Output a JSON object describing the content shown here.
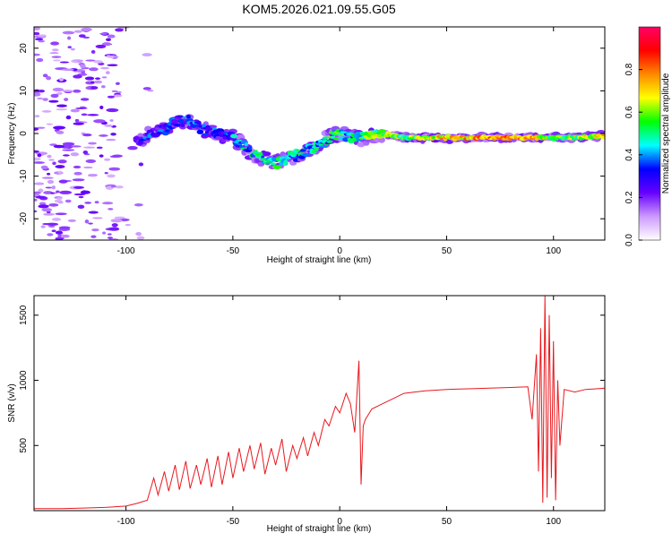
{
  "title": "KOM5.2026.021.09.55.G05",
  "chart_data": [
    {
      "type": "heatmap",
      "xlabel": "Height of straight line (km)",
      "ylabel": "Frequency (Hz)",
      "xlim": [
        -143,
        124
      ],
      "ylim": [
        -25,
        25
      ],
      "xticks": [
        -100,
        -50,
        0,
        50,
        100
      ],
      "yticks": [
        -20,
        -10,
        0,
        10,
        20
      ],
      "colorbar": {
        "label": "Normalized spectral amplitude",
        "range": [
          0,
          1
        ],
        "ticks": [
          "0.0",
          "0.2",
          "0.4",
          "0.6",
          "0.8"
        ],
        "tick_values": [
          0,
          0.2,
          0.4,
          0.6,
          0.8
        ],
        "colors": [
          "#ffffff",
          "#cc99ff",
          "#6600ff",
          "#0000ff",
          "#00ffff",
          "#00ff00",
          "#ffff00",
          "#ff8800",
          "#ff0000",
          "#ff0066"
        ]
      },
      "ridge": {
        "x": [
          -95,
          -88,
          -82,
          -76,
          -70,
          -64,
          -58,
          -50,
          -45,
          -40,
          -35,
          -30,
          -25,
          -20,
          -15,
          -10,
          -5,
          0,
          5,
          10,
          20,
          30,
          50,
          70,
          90,
          100,
          110,
          124
        ],
        "y": [
          -2,
          0,
          1,
          3,
          3,
          1,
          0,
          -1,
          -3,
          -5,
          -6,
          -7,
          -6,
          -5,
          -4,
          -3,
          -1,
          0,
          -1,
          -1,
          0,
          -1,
          -1,
          -1,
          -1,
          -1,
          -1,
          -0.5
        ],
        "amplitude": [
          0.25,
          0.3,
          0.3,
          0.3,
          0.3,
          0.3,
          0.3,
          0.35,
          0.4,
          0.45,
          0.45,
          0.5,
          0.45,
          0.45,
          0.45,
          0.4,
          0.45,
          0.5,
          0.45,
          0.5,
          0.6,
          0.55,
          0.7,
          0.75,
          0.75,
          0.55,
          0.6,
          0.65
        ]
      }
    },
    {
      "type": "line",
      "xlabel": "Height of straight line (km)",
      "ylabel": "SNR (v/v)",
      "xlim": [
        -143,
        124
      ],
      "ylim": [
        0,
        1650
      ],
      "xticks": [
        -100,
        -50,
        0,
        50,
        100
      ],
      "yticks": [
        500,
        1000,
        1500
      ],
      "color": "#e8181e",
      "series": [
        {
          "x": [
            -143,
            -130,
            -120,
            -110,
            -100,
            -95,
            -90,
            -87,
            -85,
            -82,
            -80,
            -77,
            -75,
            -72,
            -70,
            -67,
            -65,
            -62,
            -60,
            -57,
            -55,
            -52,
            -50,
            -47,
            -45,
            -42,
            -40,
            -37,
            -35,
            -32,
            -30,
            -27,
            -25,
            -22,
            -20,
            -17,
            -15,
            -12,
            -10,
            -7,
            -5,
            -2,
            0,
            3,
            5,
            7,
            9,
            10,
            11,
            12,
            15,
            20,
            25,
            30,
            35,
            40,
            50,
            60,
            70,
            80,
            88,
            90,
            92,
            93,
            94,
            95,
            96,
            97,
            98,
            99,
            100,
            101,
            102,
            103,
            105,
            110,
            115,
            120,
            124
          ],
          "y": [
            15,
            15,
            20,
            25,
            35,
            55,
            80,
            250,
            120,
            300,
            150,
            350,
            160,
            380,
            170,
            350,
            200,
            400,
            180,
            420,
            200,
            450,
            250,
            480,
            300,
            500,
            320,
            520,
            280,
            480,
            350,
            550,
            300,
            500,
            400,
            560,
            420,
            600,
            500,
            700,
            650,
            800,
            750,
            900,
            820,
            600,
            1150,
            200,
            650,
            700,
            780,
            820,
            860,
            900,
            910,
            920,
            930,
            935,
            940,
            945,
            950,
            700,
            1200,
            300,
            1400,
            60,
            1650,
            100,
            1500,
            250,
            1300,
            80,
            1000,
            500,
            930,
            910,
            930,
            935,
            940
          ]
        }
      ]
    }
  ]
}
